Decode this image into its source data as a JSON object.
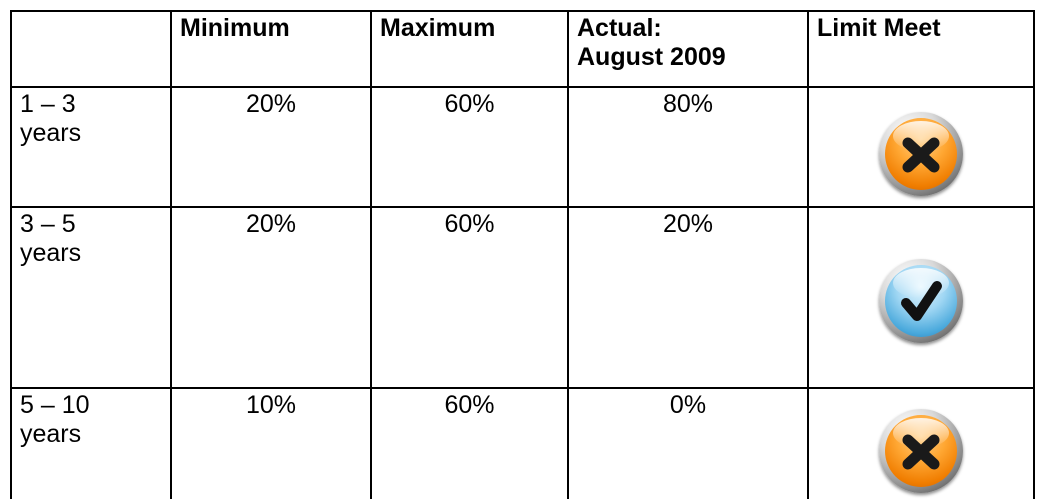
{
  "table": {
    "headers": [
      "",
      "Minimum",
      "Maximum",
      "Actual:\nAugust 2009",
      "Limit Meet"
    ],
    "rows": [
      {
        "label": "1 – 3\nyears",
        "minimum": "20%",
        "maximum": "60%",
        "actual": "80%",
        "limit_icon": "x-icon"
      },
      {
        "label": "3 – 5\nyears",
        "minimum": "20%",
        "maximum": "60%",
        "actual": "20%",
        "limit_icon": "check-icon"
      },
      {
        "label": "5 – 10\nyears",
        "minimum": "10%",
        "maximum": "60%",
        "actual": "0%",
        "limit_icon": "x-icon"
      }
    ]
  },
  "colors": {
    "fail_orange": "#f07d00",
    "pass_blue": "#4aa9dc",
    "border": "#000000"
  }
}
